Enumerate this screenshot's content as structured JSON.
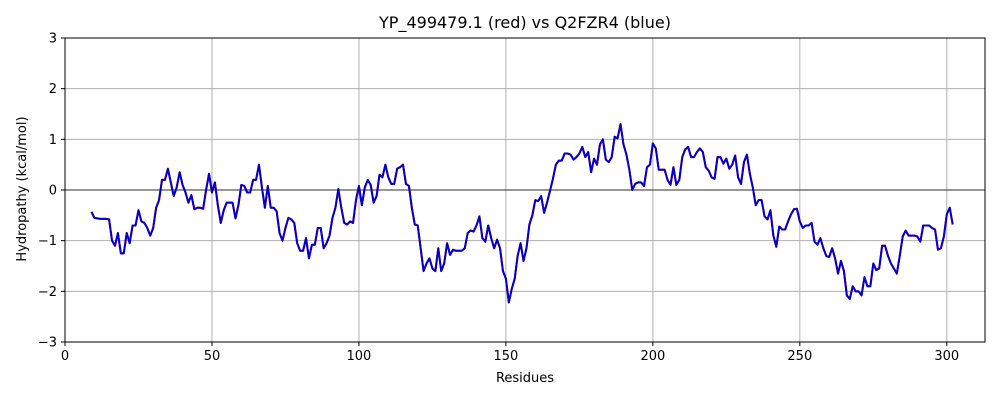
{
  "chart_data": {
    "type": "line",
    "title": "YP_499479.1 (red) vs Q2FZR4 (blue)",
    "xlabel": "Residues",
    "ylabel": "Hydropathy (kcal/mol)",
    "xlim": [
      0,
      313
    ],
    "ylim": [
      -3,
      3
    ],
    "x_ticks": [
      0,
      50,
      100,
      150,
      200,
      250,
      300
    ],
    "y_ticks": [
      -3,
      -2,
      -1,
      0,
      1,
      2,
      3
    ],
    "grid": true,
    "zero_line": true,
    "colors": {
      "red": "#ff0000",
      "blue": "#0000cc",
      "grid": "#b0b0b0",
      "axis": "#000000"
    },
    "x": [
      9,
      10,
      12,
      14,
      15,
      16,
      17,
      18,
      19,
      20,
      21,
      22,
      23,
      24,
      25,
      26,
      27,
      28,
      29,
      30,
      31,
      32,
      33,
      34,
      35,
      36,
      37,
      38,
      39,
      40,
      41,
      42,
      43,
      44,
      45,
      46,
      47,
      48,
      49,
      50,
      51,
      52,
      53,
      54,
      55,
      56,
      57,
      58,
      59,
      60,
      61,
      62,
      63,
      64,
      65,
      66,
      67,
      68,
      69,
      70,
      71,
      72,
      73,
      74,
      75,
      76,
      77,
      78,
      79,
      80,
      81,
      82,
      83,
      84,
      85,
      86,
      87,
      88,
      89,
      90,
      91,
      92,
      93,
      94,
      95,
      96,
      97,
      98,
      99,
      100,
      101,
      102,
      103,
      104,
      105,
      106,
      107,
      108,
      109,
      110,
      111,
      112,
      113,
      114,
      115,
      116,
      117,
      118,
      119,
      120,
      121,
      122,
      123,
      124,
      125,
      126,
      127,
      128,
      129,
      130,
      131,
      132,
      133,
      134,
      135,
      136,
      137,
      138,
      139,
      140,
      141,
      142,
      143,
      144,
      145,
      146,
      147,
      148,
      149,
      150,
      151,
      152,
      153,
      154,
      155,
      156,
      157,
      158,
      159,
      160,
      161,
      162,
      163,
      164,
      165,
      166,
      167,
      168,
      169,
      170,
      171,
      172,
      173,
      174,
      175,
      176,
      177,
      178,
      179,
      180,
      181,
      182,
      183,
      184,
      185,
      186,
      187,
      188,
      189,
      190,
      191,
      192,
      193,
      194,
      195,
      196,
      197,
      198,
      199,
      200,
      201,
      202,
      203,
      204,
      205,
      206,
      207,
      208,
      209,
      210,
      211,
      212,
      213,
      214,
      215,
      216,
      217,
      218,
      219,
      220,
      221,
      222,
      223,
      224,
      225,
      226,
      227,
      228,
      229,
      230,
      231,
      232,
      233,
      234,
      235,
      236,
      237,
      238,
      239,
      240,
      241,
      242,
      243,
      244,
      245,
      246,
      247,
      248,
      249,
      250,
      251,
      252,
      253,
      254,
      255,
      256,
      257,
      258,
      259,
      260,
      261,
      262,
      263,
      264,
      265,
      266,
      267,
      268,
      269,
      270,
      271,
      272,
      273,
      274,
      275,
      276,
      277,
      278,
      279,
      280,
      281,
      282,
      283,
      284,
      285,
      286,
      287,
      288,
      289,
      290,
      291,
      292,
      293,
      294,
      295,
      296,
      297,
      298,
      299,
      300,
      301,
      302
    ],
    "series": [
      {
        "color": "red",
        "values": [
          -0.43,
          -0.55,
          -0.57,
          -0.57,
          -0.58,
          -1.0,
          -1.1,
          -0.85,
          -1.25,
          -1.25,
          -0.85,
          -1.05,
          -0.7,
          -0.7,
          -0.4,
          -0.62,
          -0.65,
          -0.75,
          -0.9,
          -0.75,
          -0.35,
          -0.2,
          0.2,
          0.2,
          0.42,
          0.15,
          -0.12,
          0.05,
          0.35,
          0.1,
          -0.05,
          -0.25,
          -0.1,
          -0.38,
          -0.35,
          -0.35,
          -0.37,
          0.0,
          0.32,
          -0.05,
          0.15,
          -0.3,
          -0.65,
          -0.4,
          -0.25,
          -0.25,
          -0.25,
          -0.56,
          -0.3,
          0.1,
          0.08,
          -0.05,
          -0.05,
          0.2,
          0.2,
          0.5,
          0.05,
          -0.35,
          0.08,
          -0.35,
          -0.35,
          -0.42,
          -0.85,
          -1.0,
          -0.75,
          -0.55,
          -0.58,
          -0.65,
          -1.05,
          -1.2,
          -1.2,
          -0.95,
          -1.35,
          -1.08,
          -1.08,
          -0.75,
          -0.75,
          -1.15,
          -1.05,
          -0.9,
          -0.55,
          -0.35,
          0.02,
          -0.35,
          -0.65,
          -0.68,
          -0.62,
          -0.65,
          -0.2,
          0.08,
          -0.3,
          0.05,
          0.2,
          0.1,
          -0.25,
          -0.12,
          0.3,
          0.25,
          0.5,
          0.25,
          0.12,
          0.12,
          0.42,
          0.45,
          0.5,
          0.12,
          0.08,
          -0.35,
          -0.68,
          -0.7,
          -1.15,
          -1.6,
          -1.45,
          -1.35,
          -1.55,
          -1.6,
          -1.15,
          -1.6,
          -1.45,
          -1.05,
          -1.28,
          -1.18,
          -1.2,
          -1.2,
          -1.2,
          -1.15,
          -0.85,
          -0.8,
          -0.82,
          -0.7,
          -0.52,
          -0.95,
          -1.02,
          -0.7,
          -0.95,
          -1.15,
          -0.98,
          -1.15,
          -1.6,
          -1.75,
          -2.22,
          -1.95,
          -1.75,
          -1.3,
          -1.05,
          -1.4,
          -1.15,
          -0.68,
          -0.5,
          -0.2,
          -0.22,
          -0.12,
          -0.45,
          -0.25,
          -0.02,
          0.22,
          0.5,
          0.58,
          0.58,
          0.72,
          0.72,
          0.7,
          0.6,
          0.65,
          0.72,
          0.85,
          0.65,
          0.75,
          0.35,
          0.62,
          0.5,
          0.9,
          1.0,
          0.6,
          0.55,
          0.65,
          1.05,
          1.02,
          1.3,
          0.9,
          0.7,
          0.4,
          0.0,
          0.12,
          0.15,
          0.15,
          0.08,
          0.45,
          0.5,
          0.92,
          0.82,
          0.4,
          0.4,
          0.4,
          0.2,
          0.1,
          0.45,
          0.1,
          0.2,
          0.65,
          0.8,
          0.85,
          0.65,
          0.65,
          0.75,
          0.82,
          0.75,
          0.45,
          0.38,
          0.25,
          0.22,
          0.65,
          0.65,
          0.52,
          0.62,
          0.42,
          0.5,
          0.68,
          0.25,
          0.12,
          0.55,
          0.7,
          0.32,
          0.05,
          -0.3,
          -0.2,
          -0.2,
          -0.52,
          -0.58,
          -0.4,
          -0.9,
          -1.12,
          -0.72,
          -0.78,
          -0.78,
          -0.62,
          -0.48,
          -0.38,
          -0.37,
          -0.62,
          -0.75,
          -0.7,
          -0.7,
          -0.65,
          -1.02,
          -1.08,
          -0.95,
          -1.15,
          -1.3,
          -1.32,
          -1.15,
          -1.35,
          -1.65,
          -1.4,
          -1.6,
          -2.08,
          -2.15,
          -1.9,
          -2.0,
          -2.0,
          -2.08,
          -1.72,
          -1.9,
          -1.9,
          -1.45,
          -1.58,
          -1.55,
          -1.1,
          -1.1,
          -1.3,
          -1.45,
          -1.55,
          -1.65,
          -1.3,
          -0.92,
          -0.8,
          -0.9,
          -0.9,
          -0.9,
          -0.92,
          -1.02,
          -0.7,
          -0.7,
          -0.7,
          -0.75,
          -0.78,
          -1.18,
          -1.15,
          -0.92,
          -0.48,
          -0.35,
          -0.68
        ]
      },
      {
        "color": "blue",
        "values": [
          -0.43,
          -0.55,
          -0.57,
          -0.57,
          -0.58,
          -1.0,
          -1.1,
          -0.85,
          -1.25,
          -1.25,
          -0.85,
          -1.05,
          -0.7,
          -0.7,
          -0.4,
          -0.62,
          -0.65,
          -0.75,
          -0.9,
          -0.75,
          -0.35,
          -0.2,
          0.2,
          0.2,
          0.42,
          0.15,
          -0.12,
          0.05,
          0.35,
          0.1,
          -0.05,
          -0.25,
          -0.1,
          -0.38,
          -0.35,
          -0.35,
          -0.37,
          0.0,
          0.32,
          -0.05,
          0.15,
          -0.3,
          -0.65,
          -0.4,
          -0.25,
          -0.25,
          -0.25,
          -0.56,
          -0.3,
          0.1,
          0.08,
          -0.05,
          -0.05,
          0.2,
          0.2,
          0.5,
          0.05,
          -0.35,
          0.08,
          -0.35,
          -0.35,
          -0.42,
          -0.85,
          -1.0,
          -0.75,
          -0.55,
          -0.58,
          -0.65,
          -1.05,
          -1.2,
          -1.2,
          -0.95,
          -1.35,
          -1.08,
          -1.08,
          -0.75,
          -0.75,
          -1.15,
          -1.05,
          -0.9,
          -0.55,
          -0.35,
          0.02,
          -0.35,
          -0.65,
          -0.68,
          -0.62,
          -0.65,
          -0.2,
          0.08,
          -0.3,
          0.05,
          0.2,
          0.1,
          -0.25,
          -0.12,
          0.3,
          0.25,
          0.5,
          0.25,
          0.12,
          0.12,
          0.42,
          0.45,
          0.5,
          0.12,
          0.08,
          -0.35,
          -0.68,
          -0.7,
          -1.15,
          -1.6,
          -1.45,
          -1.35,
          -1.55,
          -1.6,
          -1.15,
          -1.6,
          -1.45,
          -1.05,
          -1.28,
          -1.18,
          -1.2,
          -1.2,
          -1.2,
          -1.15,
          -0.85,
          -0.8,
          -0.82,
          -0.7,
          -0.52,
          -0.95,
          -1.02,
          -0.7,
          -0.95,
          -1.15,
          -0.98,
          -1.15,
          -1.6,
          -1.75,
          -2.22,
          -1.95,
          -1.75,
          -1.3,
          -1.05,
          -1.4,
          -1.15,
          -0.68,
          -0.5,
          -0.2,
          -0.22,
          -0.12,
          -0.45,
          -0.25,
          -0.02,
          0.22,
          0.5,
          0.58,
          0.58,
          0.72,
          0.72,
          0.7,
          0.6,
          0.65,
          0.72,
          0.85,
          0.65,
          0.75,
          0.35,
          0.62,
          0.5,
          0.9,
          1.0,
          0.6,
          0.55,
          0.65,
          1.05,
          1.02,
          1.3,
          0.9,
          0.7,
          0.4,
          0.0,
          0.12,
          0.15,
          0.15,
          0.08,
          0.45,
          0.5,
          0.92,
          0.82,
          0.4,
          0.4,
          0.4,
          0.2,
          0.1,
          0.45,
          0.1,
          0.2,
          0.65,
          0.8,
          0.85,
          0.65,
          0.65,
          0.75,
          0.82,
          0.75,
          0.45,
          0.38,
          0.25,
          0.22,
          0.65,
          0.65,
          0.52,
          0.62,
          0.42,
          0.5,
          0.68,
          0.25,
          0.12,
          0.55,
          0.7,
          0.32,
          0.05,
          -0.3,
          -0.2,
          -0.2,
          -0.52,
          -0.58,
          -0.4,
          -0.9,
          -1.12,
          -0.72,
          -0.78,
          -0.78,
          -0.62,
          -0.48,
          -0.38,
          -0.37,
          -0.62,
          -0.75,
          -0.7,
          -0.7,
          -0.65,
          -1.02,
          -1.08,
          -0.95,
          -1.15,
          -1.3,
          -1.32,
          -1.15,
          -1.35,
          -1.65,
          -1.4,
          -1.6,
          -2.08,
          -2.15,
          -1.9,
          -2.0,
          -2.0,
          -2.08,
          -1.72,
          -1.9,
          -1.9,
          -1.45,
          -1.58,
          -1.55,
          -1.1,
          -1.1,
          -1.3,
          -1.45,
          -1.55,
          -1.65,
          -1.3,
          -0.92,
          -0.8,
          -0.9,
          -0.9,
          -0.9,
          -0.92,
          -1.02,
          -0.7,
          -0.7,
          -0.7,
          -0.75,
          -0.78,
          -1.18,
          -1.15,
          -0.92,
          -0.48,
          -0.35,
          -0.68
        ]
      }
    ]
  }
}
